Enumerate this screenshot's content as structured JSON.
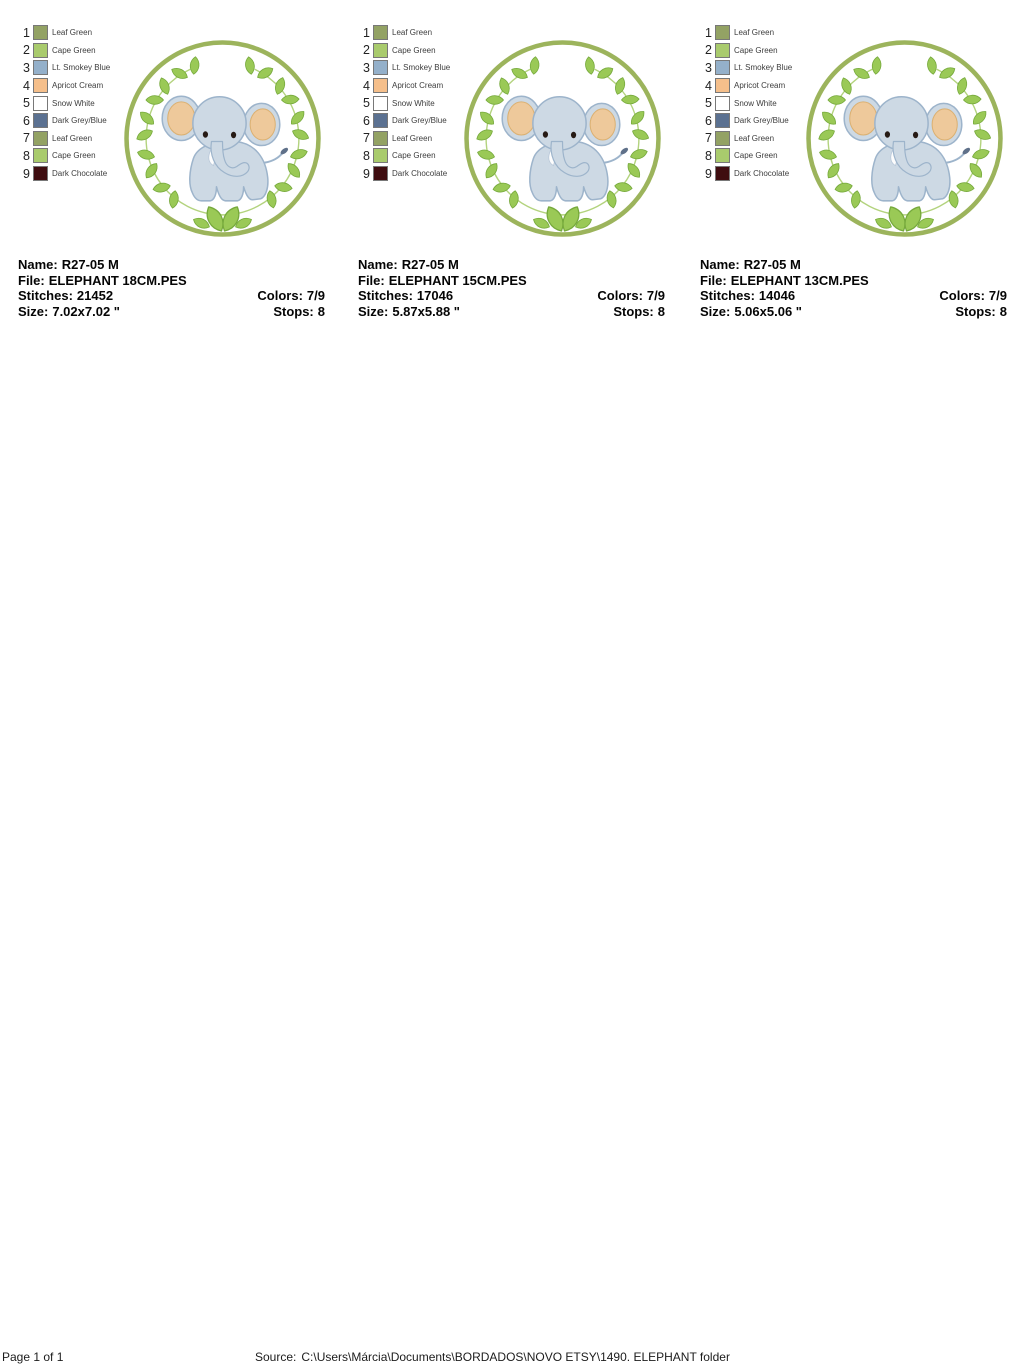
{
  "legend": {
    "colors": [
      {
        "num": "1",
        "name": "Leaf Green",
        "hex": "#93a264"
      },
      {
        "num": "2",
        "name": "Cape Green",
        "hex": "#a9cb6d"
      },
      {
        "num": "3",
        "name": "Lt. Smokey Blue",
        "hex": "#94b0ca"
      },
      {
        "num": "4",
        "name": "Apricot Cream",
        "hex": "#f5bf8b"
      },
      {
        "num": "5",
        "name": "Snow White",
        "hex": "#ffffff"
      },
      {
        "num": "6",
        "name": "Dark Grey/Blue",
        "hex": "#5b7191"
      },
      {
        "num": "7",
        "name": "Leaf Green",
        "hex": "#93a264"
      },
      {
        "num": "8",
        "name": "Cape Green",
        "hex": "#a9cb6d"
      },
      {
        "num": "9",
        "name": "Dark Chocolate",
        "hex": "#3f0d10"
      }
    ]
  },
  "designs": [
    {
      "name_label": "Name:",
      "name": "R27-05 M",
      "file_label": "File:",
      "file": "ELEPHANT 18CM.PES",
      "stitches_label": "Stitches:",
      "stitches": "21452",
      "size_label": "Size:",
      "size": "7.02x7.02 \"",
      "colors_label": "Colors:",
      "colors": "7/9",
      "stops_label": "Stops:",
      "stops": "8"
    },
    {
      "name_label": "Name:",
      "name": "R27-05 M",
      "file_label": "File:",
      "file": "ELEPHANT 15CM.PES",
      "stitches_label": "Stitches:",
      "stitches": "17046",
      "size_label": "Size:",
      "size": "5.87x5.88 \"",
      "colors_label": "Colors:",
      "colors": "7/9",
      "stops_label": "Stops:",
      "stops": "8"
    },
    {
      "name_label": "Name:",
      "name": "R27-05 M",
      "file_label": "File:",
      "file": "ELEPHANT 13CM.PES",
      "stitches_label": "Stitches:",
      "stitches": "14046",
      "size_label": "Size:",
      "size": "5.06x5.06 \"",
      "colors_label": "Colors:",
      "colors": "7/9",
      "stops_label": "Stops:",
      "stops": "8"
    }
  ],
  "artwork": {
    "subject": "baby-elephant-in-leaf-wreath",
    "colors": {
      "ring": "#9cb45c",
      "vine": "#b3d37e",
      "leaf": "#9ac956",
      "leaf_stroke": "#76a93c",
      "body": "#cdd9e4",
      "body_outline": "#9db4cb",
      "ear_inner": "#eec99b",
      "ear_inner_stroke": "#dbb071",
      "eye": "#261a14",
      "tail_tip": "#5f7089"
    }
  },
  "footer": {
    "page_label": "Page 1 of 1",
    "source_label": "Source:",
    "source_path": "C:\\Users\\Márcia\\Documents\\BORDADOS\\NOVO ETSY\\1490. ELEPHANT folder"
  }
}
